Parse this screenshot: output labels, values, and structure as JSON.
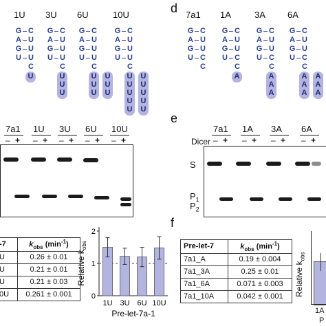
{
  "panel_c": {
    "constructs": [
      "1U",
      "3U",
      "6U",
      "10U"
    ],
    "stem_left": [
      "G",
      "A",
      "G",
      "U"
    ],
    "stem_right": [
      "C",
      "U",
      "U",
      "U"
    ],
    "tails": [
      "U",
      "UUU",
      "UUUUUU",
      "UUUUUUUUUU"
    ]
  },
  "panel_d": {
    "letter": "d",
    "constructs": [
      "7a1",
      "1A",
      "3A",
      "6A"
    ],
    "stem_left": [
      "G",
      "A",
      "G",
      "U"
    ],
    "stem_right": [
      "C",
      "U",
      "U",
      "C"
    ],
    "tails": [
      "",
      "A",
      "AAA",
      "AAAAAA"
    ]
  },
  "gel_left": {
    "lanes": [
      "7a1",
      "1U",
      "3U",
      "6U",
      "10U"
    ],
    "minus": "–",
    "plus": "+"
  },
  "panel_e": {
    "letter": "e",
    "dicer_label": "Dicer",
    "lanes": [
      "7a1",
      "1A",
      "3A",
      "6A"
    ],
    "minus": "–",
    "plus": "+",
    "S": "S",
    "P1": "P",
    "P1_sub": "1",
    "P2": "P",
    "P2_sub": "2"
  },
  "table_left": {
    "header_col1": "-7",
    "header_k": "k",
    "header_k_sub": "obs",
    "header_unit": " (min",
    "header_unit_sup": "-1",
    "header_close": ")",
    "rows": [
      {
        "name": "U",
        "value": "0.26 ± 0.01"
      },
      {
        "name": "U",
        "value": "0.21 ± 0.01"
      },
      {
        "name": "U",
        "value": "0.21 ± 0.03"
      },
      {
        "name": "0U",
        "value": "0.261 ± 0.001"
      }
    ]
  },
  "chart_data": {
    "type": "bar",
    "categories": [
      "1U",
      "3U",
      "6U",
      "10U"
    ],
    "values": [
      1.5,
      1.22,
      1.2,
      1.48
    ],
    "errors": [
      0.3,
      0.25,
      0.3,
      0.35
    ],
    "ylabel": "Relative k",
    "ylabel_sub": "obs",
    "xlabel": "Pre-let-7a-1",
    "ylim": [
      0,
      2
    ],
    "yticks": [
      "0",
      "1",
      "2"
    ],
    "reference_line": 1,
    "bar_color": "#b3b5e0"
  },
  "panel_f": {
    "letter": "f",
    "header_col1": "Pre-let-7",
    "header_k": "k",
    "header_k_sub": "obs",
    "header_unit": " (min",
    "header_unit_sup": "-1",
    "header_close": ")",
    "rows": [
      {
        "name": "7a1_A",
        "value": "0.19 ± 0.004"
      },
      {
        "name": "7a1_3A",
        "value": "0.25 ± 0.01"
      },
      {
        "name": "7a1_6A",
        "value": "0.071 ± 0.003"
      },
      {
        "name": "7a1_10A",
        "value": "0.042 ± 0.001"
      }
    ],
    "mini_ylabel": "Relative k",
    "mini_ylabel_sub": "obs",
    "mini_x_tick": "1A",
    "mini_x_partial": "P"
  }
}
